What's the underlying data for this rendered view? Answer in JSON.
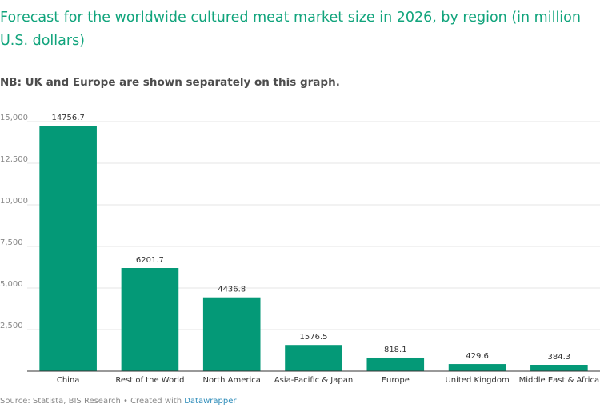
{
  "header": {
    "title": "Forecast for the worldwide cultured meat market size in 2026, by region (in million U.S. dollars)",
    "subtitle": "NB: UK and Europe are shown separately on this graph."
  },
  "footer": {
    "source": "Source: Statista, BIS Research • Created with ",
    "tool": "Datawrapper"
  },
  "colors": {
    "bar": "#049977",
    "title": "#11a47c",
    "grid": "#e6e6e6",
    "axis": "#333333",
    "tick_text": "#888888"
  },
  "chart_data": {
    "type": "bar",
    "categories": [
      "China",
      "Rest of the World",
      "North America",
      "Asia-Pacific & Japan",
      "Europe",
      "United Kingdom",
      "Middle East & Africa"
    ],
    "values": [
      14756.7,
      6201.7,
      4436.8,
      1576.5,
      818.1,
      429.6,
      384.3
    ],
    "value_labels": [
      "14756.7",
      "6201.7",
      "4436.8",
      "1576.5",
      "818.1",
      "429.6",
      "384.3"
    ],
    "ylim": [
      0,
      15000
    ],
    "yticks": [
      2500,
      5000,
      7500,
      10000,
      12500,
      15000
    ],
    "ytick_labels": [
      "2,500",
      "5,000",
      "7,500",
      "10,000",
      "12,500",
      "15,000"
    ],
    "grid": true
  }
}
